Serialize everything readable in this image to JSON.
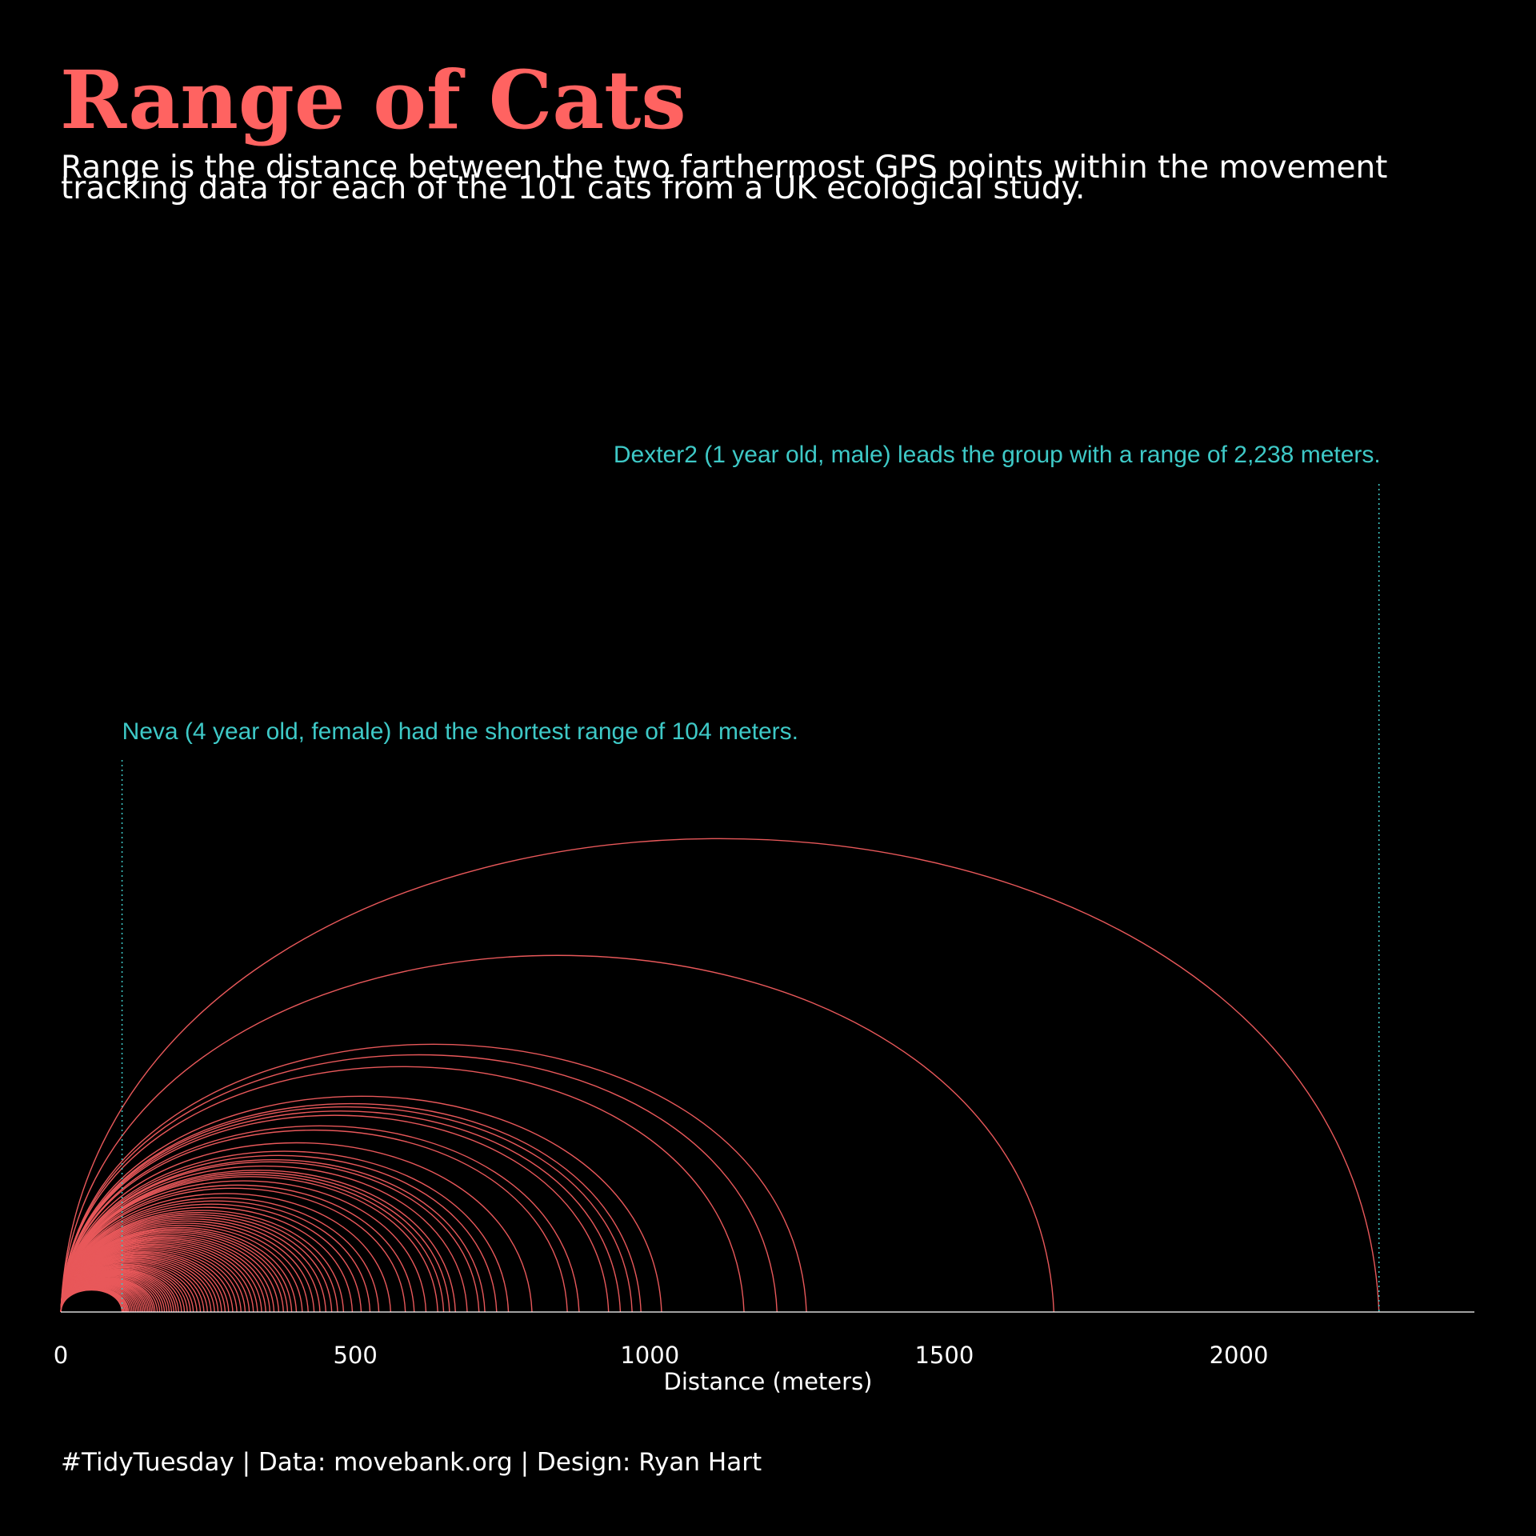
{
  "colors": {
    "background": "#000000",
    "accent": "#FF6361",
    "arc": "#E8585A",
    "annotation": "#3EC9C7",
    "text": "#FFFFFF"
  },
  "title": "Range of Cats",
  "subtitle": [
    "Range is the distance between the two farthermost GPS points within the movement",
    "tracking data for each of the 101 cats from a UK ecological study."
  ],
  "caption": "#TidyTuesday | Data: movebank.org | Design: Ryan Hart",
  "chart_data": {
    "type": "arc",
    "xlabel": "Distance (meters)",
    "xlim": [
      0,
      2400
    ],
    "xticks": [
      0,
      500,
      1000,
      1500,
      2000
    ],
    "grid": false,
    "ranges": [
      2238,
      1686,
      1266,
      1216,
      1160,
      1020,
      985,
      970,
      950,
      930,
      880,
      860,
      800,
      760,
      740,
      720,
      710,
      690,
      670,
      660,
      650,
      640,
      620,
      600,
      585,
      560,
      540,
      525,
      510,
      495,
      480,
      470,
      460,
      450,
      440,
      430,
      420,
      410,
      400,
      392,
      385,
      378,
      370,
      362,
      355,
      348,
      341,
      334,
      327,
      320,
      313,
      306,
      299,
      292,
      285,
      279,
      273,
      267,
      261,
      255,
      249,
      243,
      237,
      231,
      225,
      220,
      215,
      210,
      205,
      200,
      196,
      192,
      188,
      184,
      180,
      176,
      172,
      168,
      164,
      160,
      157,
      154,
      151,
      148,
      145,
      142,
      139,
      136,
      133,
      130,
      127,
      124,
      121,
      118,
      115,
      113,
      111,
      109,
      107,
      105,
      104
    ],
    "annotations": [
      {
        "x": 2238,
        "text": "Dexter2 (1 year old, male) leads the group with a range of 2,238 meters."
      },
      {
        "x": 104,
        "text": "Neva (4 year old, female) had the shortest range of 104 meters."
      }
    ]
  }
}
